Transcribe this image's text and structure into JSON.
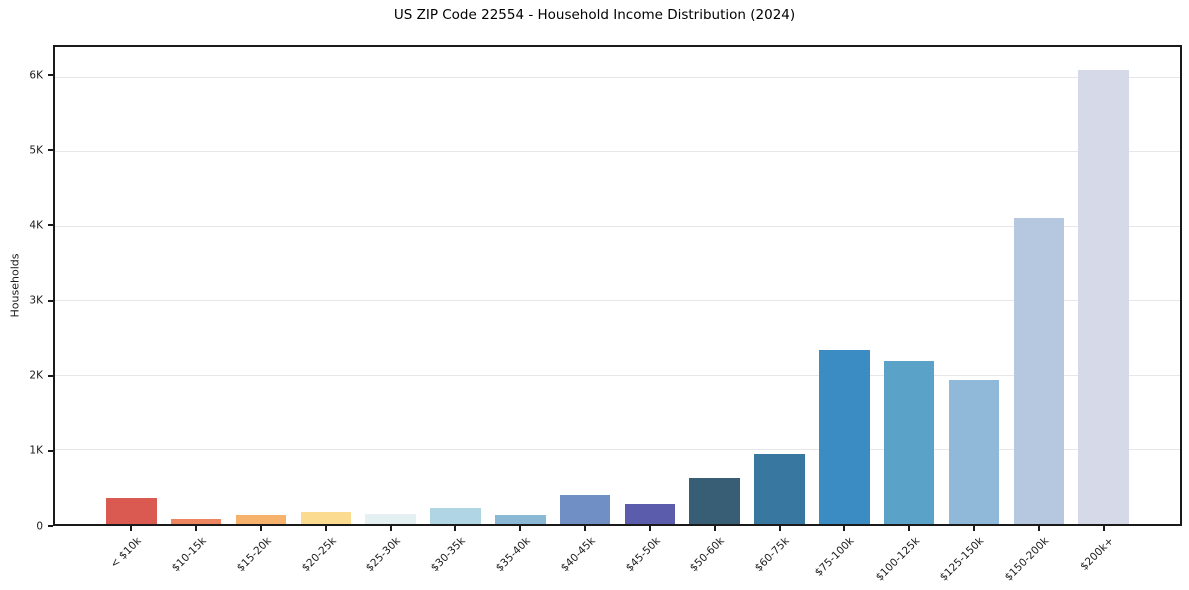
{
  "title": "US ZIP Code 22554 - Household Income Distribution (2024)",
  "chart_data": {
    "type": "bar",
    "title": "US ZIP Code 22554 - Household Income Distribution (2024)",
    "xlabel": "",
    "ylabel": "Households",
    "ylim": [
      0,
      6400
    ],
    "grid": true,
    "legend": false,
    "ytick_labels": [
      "0",
      "1K",
      "2K",
      "3K",
      "4K",
      "5K",
      "6K"
    ],
    "ytick_values": [
      0,
      1000,
      2000,
      3000,
      4000,
      5000,
      6000
    ],
    "categories": [
      "< $10k",
      "$10-15k",
      "$15-20k",
      "$20-25k",
      "$25-30k",
      "$30-35k",
      "$35-40k",
      "$40-45k",
      "$45-50k",
      "$50-60k",
      "$60-75k",
      "$75-100k",
      "$100-125k",
      "$125-150k",
      "$150-200k",
      "$200k+"
    ],
    "values": [
      350,
      65,
      125,
      155,
      130,
      220,
      120,
      395,
      270,
      615,
      945,
      2335,
      2185,
      1935,
      4110,
      6085
    ],
    "colors": [
      "#da5a52",
      "#ec8560",
      "#f6b26b",
      "#fbdb90",
      "#e4f0f2",
      "#b0d6e6",
      "#8bb8d5",
      "#7090c5",
      "#5b5dac",
      "#375e74",
      "#3878a0",
      "#3a8cc3",
      "#5aa2c8",
      "#90b8d9",
      "#b5c8e0",
      "#d6d9e7"
    ]
  }
}
